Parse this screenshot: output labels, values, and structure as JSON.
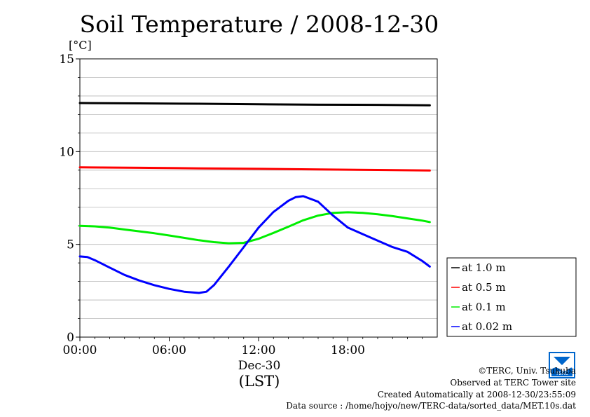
{
  "chart_data": {
    "type": "line",
    "title": "Soil Temperature / 2008-12-30",
    "yunit": "[°C]",
    "ylim": [
      0,
      15
    ],
    "yticks": [
      "0",
      "5",
      "10",
      "15"
    ],
    "xlim": [
      0,
      23.5
    ],
    "xticks": [
      "00:00",
      "06:00",
      "12:00",
      "18:00"
    ],
    "xdate": "Dec-30",
    "xlabel": "(LST)",
    "grid": true,
    "legend_position": "right",
    "series": [
      {
        "name": "at 1.0 m",
        "color": "#000000",
        "x": [
          0,
          4,
          8,
          12,
          16,
          20,
          23.5
        ],
        "y": [
          12.62,
          12.6,
          12.58,
          12.55,
          12.53,
          12.52,
          12.5
        ]
      },
      {
        "name": "at 0.5 m",
        "color": "#ff0000",
        "x": [
          0,
          4,
          8,
          12,
          16,
          20,
          23.5
        ],
        "y": [
          9.15,
          9.13,
          9.1,
          9.07,
          9.04,
          9.01,
          8.98
        ]
      },
      {
        "name": "at 0.1 m",
        "color": "#00ee00",
        "x": [
          0,
          1,
          2,
          3,
          4,
          5,
          6,
          7,
          8,
          9,
          10,
          11,
          12,
          13,
          14,
          15,
          16,
          17,
          18,
          19,
          20,
          21,
          22,
          23,
          23.5
        ],
        "y": [
          6.0,
          5.97,
          5.9,
          5.8,
          5.7,
          5.6,
          5.48,
          5.35,
          5.22,
          5.12,
          5.06,
          5.08,
          5.3,
          5.62,
          5.95,
          6.3,
          6.55,
          6.7,
          6.73,
          6.7,
          6.62,
          6.52,
          6.4,
          6.28,
          6.2
        ]
      },
      {
        "name": "at 0.02 m",
        "color": "#0000ff",
        "x": [
          0,
          0.5,
          1,
          2,
          3,
          4,
          5,
          6,
          7,
          8,
          8.5,
          9,
          10,
          11,
          12,
          13,
          14,
          14.5,
          15,
          16,
          17,
          18,
          19,
          20,
          21,
          22,
          23,
          23.5
        ],
        "y": [
          4.35,
          4.32,
          4.15,
          3.75,
          3.35,
          3.05,
          2.8,
          2.6,
          2.45,
          2.38,
          2.45,
          2.8,
          3.8,
          4.85,
          5.9,
          6.75,
          7.35,
          7.55,
          7.6,
          7.3,
          6.55,
          5.9,
          5.55,
          5.2,
          4.85,
          4.6,
          4.1,
          3.8
        ]
      }
    ]
  },
  "footer": {
    "copyright": "©TERC, Univ. Tsukuba",
    "observed": "Observed at TERC Tower site",
    "created": "Created Automatically at 2008-12-30/23:55:09",
    "source": "Data source : /home/hojyo/new/TERC-data/sorted_data/MET.10s.dat"
  },
  "logo": {
    "text": "TERC",
    "color": "#0066cc"
  }
}
